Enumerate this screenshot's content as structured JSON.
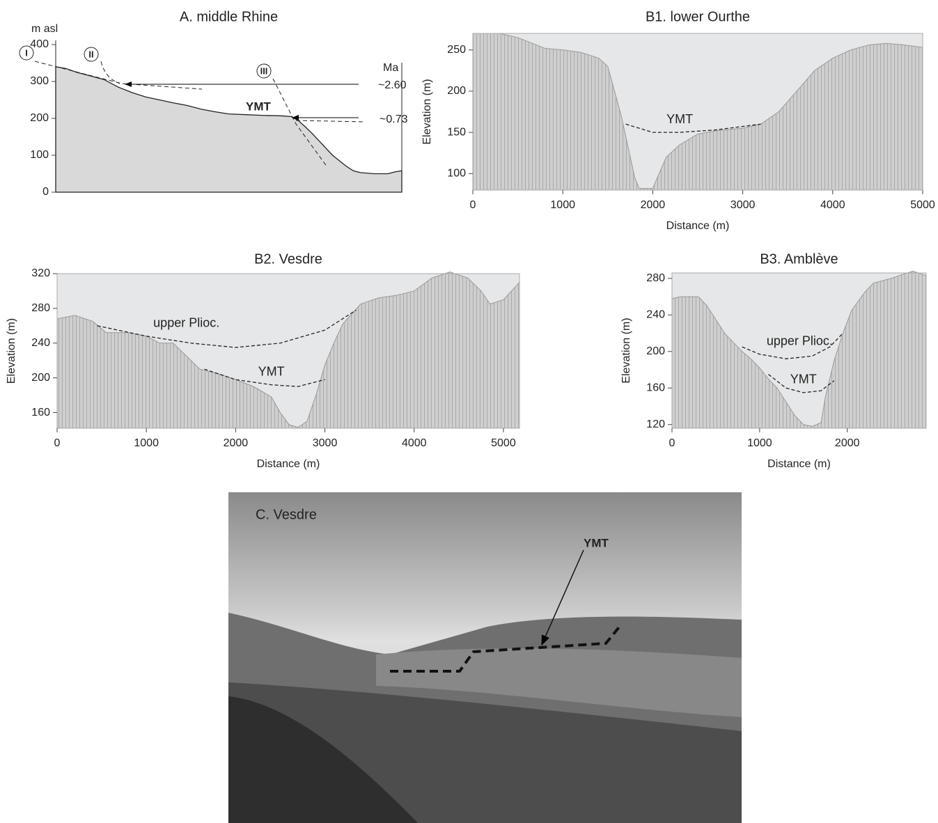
{
  "chart_data": [
    {
      "type": "area",
      "title": "A. middle Rhine",
      "ylabel": "m asl",
      "ylim": [
        0,
        400
      ],
      "yticks": [
        0,
        100,
        200,
        300,
        400
      ],
      "xlim": [
        0,
        100
      ],
      "profile": {
        "x": [
          0,
          3,
          6,
          10,
          14,
          18,
          22,
          26,
          30,
          34,
          38,
          42,
          46,
          50,
          55,
          60,
          65,
          68,
          70,
          72,
          74,
          76,
          78,
          80,
          82,
          84,
          86,
          88,
          92,
          96,
          98,
          100
        ],
        "values": [
          340,
          335,
          325,
          315,
          305,
          285,
          270,
          258,
          250,
          242,
          235,
          225,
          218,
          212,
          210,
          208,
          207,
          205,
          195,
          178,
          160,
          140,
          120,
          100,
          85,
          70,
          58,
          53,
          50,
          50,
          55,
          58
        ]
      },
      "annotations": [
        "I",
        "II",
        "III",
        "Ma",
        "~2.60",
        "~0.73",
        "YMT"
      ]
    },
    {
      "type": "area",
      "title": "B1. lower Ourthe",
      "xlabel": "Distance (m)",
      "ylabel": "Elevation (m)",
      "xlim": [
        0,
        5000
      ],
      "ylim": [
        80,
        270
      ],
      "xticks": [
        0,
        1000,
        2000,
        3000,
        4000,
        5000
      ],
      "yticks": [
        100,
        150,
        200,
        250
      ],
      "profile": {
        "x": [
          0,
          300,
          500,
          800,
          1000,
          1200,
          1400,
          1500,
          1550,
          1650,
          1750,
          1800,
          1850,
          2000,
          2050,
          2150,
          2300,
          2500,
          2700,
          3000,
          3200,
          3400,
          3600,
          3800,
          4000,
          4200,
          4400,
          4600,
          4800,
          5000
        ],
        "values": [
          270,
          270,
          265,
          252,
          250,
          247,
          240,
          230,
          210,
          170,
          120,
          95,
          82,
          82,
          95,
          120,
          135,
          148,
          152,
          155,
          160,
          175,
          200,
          225,
          240,
          250,
          256,
          258,
          256,
          253
        ]
      },
      "lines": [
        {
          "name": "YMT",
          "x": [
            1700,
            2000,
            2300,
            2700,
            3200
          ],
          "values": [
            160,
            150,
            150,
            153,
            160
          ]
        }
      ]
    },
    {
      "type": "area",
      "title": "B2. Vesdre",
      "xlabel": "Distance (m)",
      "ylabel": "Elevation (m)",
      "xlim": [
        0,
        5180
      ],
      "ylim": [
        142,
        320
      ],
      "xticks": [
        0,
        1000,
        2000,
        3000,
        4000,
        5000
      ],
      "yticks": [
        160,
        200,
        240,
        280,
        320
      ],
      "profile": {
        "x": [
          0,
          200,
          400,
          550,
          800,
          1000,
          1150,
          1300,
          1450,
          1600,
          1800,
          2000,
          2200,
          2400,
          2500,
          2600,
          2700,
          2800,
          2900,
          3000,
          3100,
          3200,
          3400,
          3600,
          3800,
          4000,
          4200,
          4400,
          4600,
          4750,
          4850,
          5000,
          5180
        ],
        "values": [
          268,
          272,
          265,
          252,
          252,
          248,
          240,
          240,
          225,
          210,
          205,
          198,
          190,
          178,
          160,
          146,
          143,
          150,
          180,
          215,
          240,
          262,
          285,
          292,
          295,
          300,
          315,
          322,
          315,
          300,
          285,
          290,
          310
        ]
      },
      "lines": [
        {
          "name": "upper Plioc.",
          "x": [
            450,
            1000,
            1500,
            2000,
            2500,
            3000,
            3350
          ],
          "values": [
            260,
            248,
            240,
            235,
            240,
            255,
            278
          ]
        },
        {
          "name": "YMT",
          "x": [
            1650,
            2000,
            2400,
            2700,
            3000
          ],
          "values": [
            210,
            198,
            192,
            190,
            198
          ]
        }
      ]
    },
    {
      "type": "area",
      "title": "B3. Amblève",
      "xlabel": "Distance (m)",
      "ylabel": "Elevation (m)",
      "xlim": [
        0,
        2900
      ],
      "ylim": [
        116,
        286
      ],
      "xticks": [
        0,
        1000,
        2000
      ],
      "yticks": [
        120,
        160,
        200,
        240,
        280
      ],
      "profile": {
        "x": [
          0,
          100,
          300,
          400,
          500,
          600,
          700,
          800,
          900,
          1000,
          1100,
          1200,
          1300,
          1400,
          1500,
          1600,
          1700,
          1750,
          1850,
          1950,
          2050,
          2200,
          2300,
          2500,
          2650,
          2750,
          2900
        ],
        "values": [
          258,
          260,
          260,
          250,
          235,
          220,
          210,
          200,
          192,
          182,
          170,
          160,
          145,
          130,
          120,
          118,
          122,
          150,
          190,
          220,
          245,
          265,
          275,
          280,
          285,
          288,
          283
        ]
      },
      "lines": [
        {
          "name": "upper Plioc.",
          "x": [
            800,
            1000,
            1300,
            1600,
            1800,
            1950
          ],
          "values": [
            205,
            197,
            192,
            195,
            205,
            220
          ]
        },
        {
          "name": "YMT",
          "x": [
            1100,
            1300,
            1500,
            1700,
            1850
          ],
          "values": [
            175,
            160,
            155,
            157,
            168
          ]
        }
      ]
    }
  ],
  "photo": {
    "title": "C. Vesdre",
    "annotation": "YMT"
  }
}
